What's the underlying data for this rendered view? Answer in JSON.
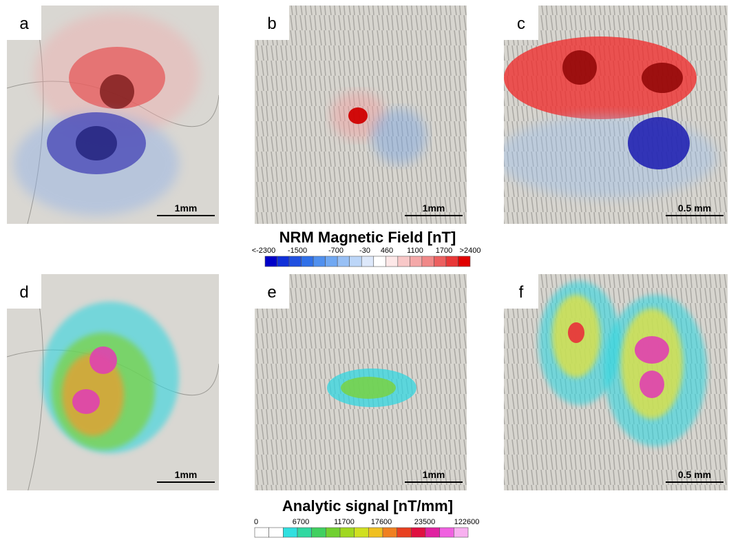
{
  "panels": [
    {
      "label": "a",
      "scale_bar": "1mm"
    },
    {
      "label": "b",
      "scale_bar": "1mm"
    },
    {
      "label": "c",
      "scale_bar": "0.5 mm"
    },
    {
      "label": "d",
      "scale_bar": "1mm"
    },
    {
      "label": "e",
      "scale_bar": "1mm"
    },
    {
      "label": "f",
      "scale_bar": "0.5 mm"
    }
  ],
  "colorbars": [
    {
      "title": "NRM Magnetic Field  [nT]",
      "tick_labels": [
        "<-2300",
        "-1500",
        "-700",
        "-30",
        "460",
        "1100",
        "1700",
        ">2400"
      ]
    },
    {
      "title": "Analytic signal [nT/mm]",
      "tick_labels": [
        "0",
        "6700",
        "11700",
        "17600",
        "23500",
        "122600"
      ]
    }
  ]
}
